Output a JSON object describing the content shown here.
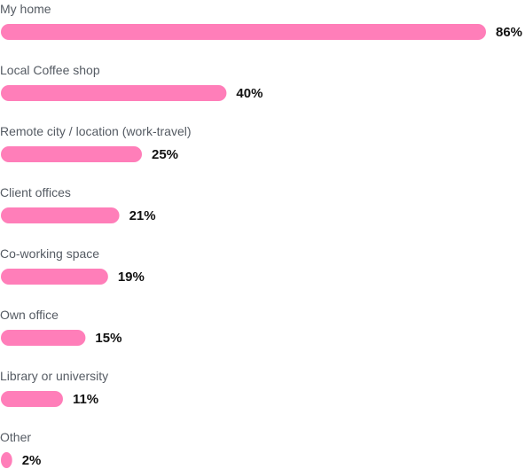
{
  "chart_data": {
    "type": "bar",
    "orientation": "horizontal",
    "categories": [
      "My home",
      "Local Coffee shop",
      "Remote city / location (work-travel)",
      "Client offices",
      "Co-working space",
      "Own office",
      "Library or university",
      "Other"
    ],
    "values": [
      86,
      40,
      25,
      21,
      19,
      15,
      11,
      2
    ],
    "value_labels": [
      "86%",
      "40%",
      "25%",
      "21%",
      "19%",
      "15%",
      "11%",
      "2%"
    ],
    "value_unit": "%",
    "xlim": [
      0,
      86
    ],
    "title": "",
    "xlabel": "",
    "ylabel": "",
    "grid": false,
    "legend": "none",
    "bar_color": "#ff7eb9",
    "label_color": "#555b63",
    "value_color": "#111111"
  }
}
